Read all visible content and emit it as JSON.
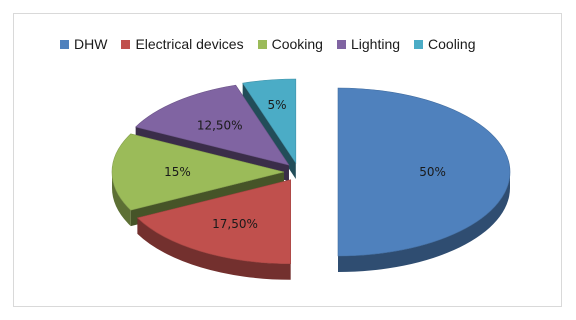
{
  "chart_data": {
    "type": "pie",
    "title": "",
    "categories": [
      "DHW",
      "Electrical devices",
      "Cooking",
      "Lighting",
      "Cooling"
    ],
    "values": [
      50,
      17.5,
      15,
      12.5,
      5
    ],
    "value_labels": [
      "50%",
      "17,50%",
      "15%",
      "12,50%",
      "5%"
    ],
    "colors": [
      "#4f81bd",
      "#c0504d",
      "#9bbb59",
      "#8064a2",
      "#4bacc6"
    ],
    "legend_placement": "top",
    "exploded": true,
    "style": "3d"
  }
}
